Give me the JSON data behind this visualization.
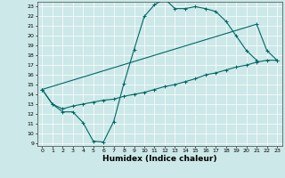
{
  "title": "",
  "xlabel": "Humidex (Indice chaleur)",
  "ylabel": "",
  "xlim_min": -0.5,
  "xlim_max": 23.5,
  "ylim_min": 8.7,
  "ylim_max": 23.5,
  "xticks": [
    0,
    1,
    2,
    3,
    4,
    5,
    6,
    7,
    8,
    9,
    10,
    11,
    12,
    13,
    14,
    15,
    16,
    17,
    18,
    19,
    20,
    21,
    22,
    23
  ],
  "yticks": [
    9,
    10,
    11,
    12,
    13,
    14,
    15,
    16,
    17,
    18,
    19,
    20,
    21,
    22,
    23
  ],
  "bg_color": "#cce8e8",
  "grid_color": "#ffffff",
  "line_color": "#006666",
  "line1_x": [
    0,
    1,
    2,
    3,
    4,
    5,
    6,
    7,
    8,
    9,
    10,
    11,
    12,
    13,
    14,
    15,
    16,
    17,
    18,
    19,
    20,
    21
  ],
  "line1_y": [
    14.5,
    13.0,
    12.2,
    12.2,
    11.1,
    9.2,
    9.1,
    11.2,
    15.1,
    18.6,
    22.0,
    23.2,
    23.8,
    22.8,
    22.8,
    23.0,
    22.8,
    22.5,
    21.5,
    20.0,
    18.5,
    17.5
  ],
  "line2_x": [
    0,
    1,
    2,
    3,
    4,
    5,
    6,
    7,
    8,
    9,
    10,
    11,
    12,
    13,
    14,
    15,
    16,
    17,
    18,
    19,
    20,
    21,
    22,
    23
  ],
  "line2_y": [
    14.5,
    13.0,
    12.5,
    12.8,
    13.0,
    13.2,
    13.4,
    13.5,
    13.8,
    14.0,
    14.2,
    14.5,
    14.8,
    15.0,
    15.3,
    15.6,
    16.0,
    16.2,
    16.5,
    16.8,
    17.0,
    17.3,
    17.5,
    17.5
  ],
  "line3_x": [
    0,
    21,
    22,
    23
  ],
  "line3_y": [
    14.5,
    21.2,
    18.5,
    17.5
  ],
  "marker": "+",
  "markersize": 3,
  "linewidth": 0.8,
  "tick_fontsize": 4.5,
  "xlabel_fontsize": 6.5,
  "spine_color": "#444444"
}
